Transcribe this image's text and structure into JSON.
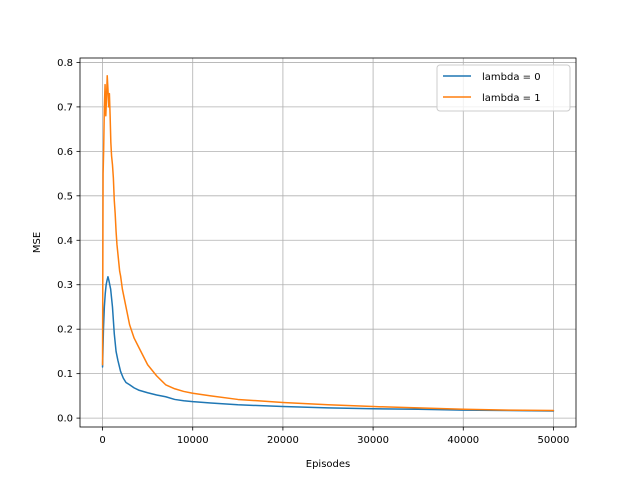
{
  "chart_data": {
    "type": "line",
    "title": "",
    "xlabel": "Episodes",
    "ylabel": "MSE",
    "xlim": [
      -2500,
      52500
    ],
    "ylim": [
      -0.02,
      0.81
    ],
    "grid": true,
    "legend_position": "top-right",
    "x_ticks": [
      0,
      10000,
      20000,
      30000,
      40000,
      50000
    ],
    "x_tick_labels": [
      "0",
      "10000",
      "20000",
      "30000",
      "40000",
      "50000"
    ],
    "y_ticks": [
      0.0,
      0.1,
      0.2,
      0.3,
      0.4,
      0.5,
      0.6,
      0.7,
      0.8
    ],
    "y_tick_labels": [
      "0.0",
      "0.1",
      "0.2",
      "0.3",
      "0.4",
      "0.5",
      "0.6",
      "0.7",
      "0.8"
    ],
    "series": [
      {
        "name": "lambda = 0",
        "color": "#1f77b4",
        "points": [
          [
            0,
            0.115
          ],
          [
            100,
            0.2
          ],
          [
            200,
            0.25
          ],
          [
            300,
            0.28
          ],
          [
            400,
            0.3
          ],
          [
            500,
            0.31
          ],
          [
            600,
            0.318
          ],
          [
            700,
            0.31
          ],
          [
            800,
            0.3
          ],
          [
            900,
            0.29
          ],
          [
            1000,
            0.27
          ],
          [
            1100,
            0.25
          ],
          [
            1200,
            0.22
          ],
          [
            1300,
            0.19
          ],
          [
            1500,
            0.15
          ],
          [
            1700,
            0.13
          ],
          [
            2000,
            0.105
          ],
          [
            2300,
            0.09
          ],
          [
            2600,
            0.08
          ],
          [
            3000,
            0.075
          ],
          [
            3500,
            0.068
          ],
          [
            4000,
            0.063
          ],
          [
            5000,
            0.057
          ],
          [
            6000,
            0.052
          ],
          [
            7000,
            0.048
          ],
          [
            8000,
            0.042
          ],
          [
            9000,
            0.039
          ],
          [
            10000,
            0.037
          ],
          [
            12000,
            0.034
          ],
          [
            15000,
            0.03
          ],
          [
            20000,
            0.026
          ],
          [
            25000,
            0.023
          ],
          [
            30000,
            0.021
          ],
          [
            35000,
            0.02
          ],
          [
            40000,
            0.018
          ],
          [
            45000,
            0.017
          ],
          [
            50000,
            0.016
          ]
        ]
      },
      {
        "name": "lambda = 1",
        "color": "#ff7f0e",
        "points": [
          [
            0,
            0.12
          ],
          [
            60,
            0.55
          ],
          [
            120,
            0.6
          ],
          [
            200,
            0.7
          ],
          [
            280,
            0.75
          ],
          [
            360,
            0.68
          ],
          [
            440,
            0.72
          ],
          [
            520,
            0.77
          ],
          [
            600,
            0.74
          ],
          [
            680,
            0.7
          ],
          [
            760,
            0.73
          ],
          [
            840,
            0.68
          ],
          [
            920,
            0.62
          ],
          [
            1000,
            0.59
          ],
          [
            1100,
            0.57
          ],
          [
            1200,
            0.54
          ],
          [
            1300,
            0.49
          ],
          [
            1400,
            0.46
          ],
          [
            1500,
            0.42
          ],
          [
            1600,
            0.39
          ],
          [
            1700,
            0.37
          ],
          [
            1800,
            0.35
          ],
          [
            1900,
            0.33
          ],
          [
            2000,
            0.32
          ],
          [
            2200,
            0.29
          ],
          [
            2400,
            0.27
          ],
          [
            2700,
            0.24
          ],
          [
            3000,
            0.21
          ],
          [
            3500,
            0.18
          ],
          [
            4000,
            0.16
          ],
          [
            4500,
            0.14
          ],
          [
            5000,
            0.12
          ],
          [
            6000,
            0.095
          ],
          [
            7000,
            0.075
          ],
          [
            8000,
            0.066
          ],
          [
            9000,
            0.06
          ],
          [
            10000,
            0.056
          ],
          [
            12000,
            0.05
          ],
          [
            15000,
            0.042
          ],
          [
            20000,
            0.035
          ],
          [
            25000,
            0.03
          ],
          [
            30000,
            0.026
          ],
          [
            35000,
            0.023
          ],
          [
            40000,
            0.02
          ],
          [
            45000,
            0.018
          ],
          [
            50000,
            0.017
          ]
        ]
      }
    ]
  }
}
